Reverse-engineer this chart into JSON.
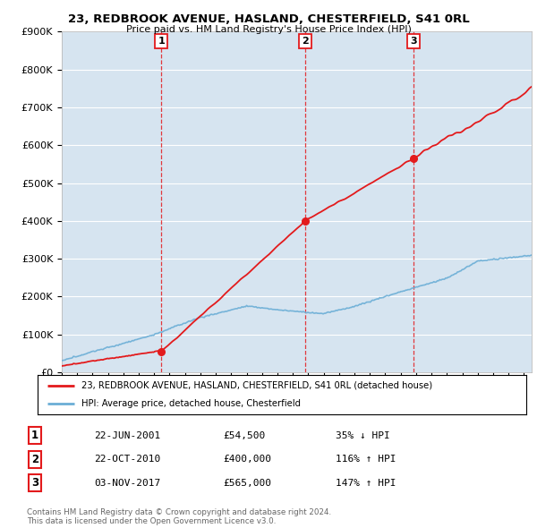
{
  "title1": "23, REDBROOK AVENUE, HASLAND, CHESTERFIELD, S41 0RL",
  "title2": "Price paid vs. HM Land Registry's House Price Index (HPI)",
  "ylim": [
    0,
    900000
  ],
  "yticks": [
    0,
    100000,
    200000,
    300000,
    400000,
    500000,
    600000,
    700000,
    800000,
    900000
  ],
  "ytick_labels": [
    "£0",
    "£100K",
    "£200K",
    "£300K",
    "£400K",
    "£500K",
    "£600K",
    "£700K",
    "£800K",
    "£900K"
  ],
  "hpi_color": "#6baed6",
  "price_color": "#e31a1c",
  "vline_color": "#e31a1c",
  "background_color": "#ffffff",
  "plot_bg_color": "#d6e4f0",
  "grid_color": "#ffffff",
  "sale1": {
    "date_num": 2001.47,
    "price": 54500,
    "label": "1"
  },
  "sale2": {
    "date_num": 2010.81,
    "price": 400000,
    "label": "2"
  },
  "sale3": {
    "date_num": 2017.84,
    "price": 565000,
    "label": "3"
  },
  "legend_label_red": "23, REDBROOK AVENUE, HASLAND, CHESTERFIELD, S41 0RL (detached house)",
  "legend_label_blue": "HPI: Average price, detached house, Chesterfield",
  "table_data": [
    [
      "1",
      "22-JUN-2001",
      "£54,500",
      "35% ↓ HPI"
    ],
    [
      "2",
      "22-OCT-2010",
      "£400,000",
      "116% ↑ HPI"
    ],
    [
      "3",
      "03-NOV-2017",
      "£565,000",
      "147% ↑ HPI"
    ]
  ],
  "footnote": "Contains HM Land Registry data © Crown copyright and database right 2024.\nThis data is licensed under the Open Government Licence v3.0.",
  "xmin": 1995,
  "xmax": 2025.5
}
